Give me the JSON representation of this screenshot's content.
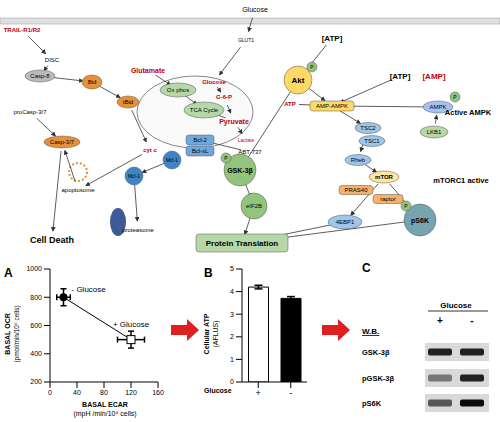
{
  "diagram": {
    "nodes": [
      {
        "label": "Glucose",
        "color": "#000000"
      },
      {
        "label": "TRAIL-R1/R2",
        "color": "#c00000"
      },
      {
        "label": "DISC",
        "color": "#000000"
      },
      {
        "label": "GLUT1",
        "color": "#000000"
      },
      {
        "label": "Casp-8",
        "color": "#bbbbbb"
      },
      {
        "label": "Bid",
        "color": "#e69138"
      },
      {
        "label": "tBid",
        "color": "#e69138"
      },
      {
        "label": "proCasp-3/7",
        "color": "#000000"
      },
      {
        "label": "Casp-3/7",
        "color": "#e69138"
      },
      {
        "label": "apoptosome",
        "color": "#000000"
      },
      {
        "label": "cyt c",
        "color": "#c00000"
      },
      {
        "label": "Cell Death",
        "color": "#000000"
      },
      {
        "label": "Glutamate",
        "color": "#c00000"
      },
      {
        "label": "Ox phos",
        "color": "#b6d7a8"
      },
      {
        "label": "TCA Cycle",
        "color": "#b6d7a8"
      },
      {
        "label": "Glucose",
        "color": "#c00000"
      },
      {
        "label": "G-6-P",
        "color": "#c00000"
      },
      {
        "label": "Pyruvate",
        "color": "#c00000"
      },
      {
        "label": "Lactate",
        "color": "#c00000"
      },
      {
        "label": "Bcl-2",
        "color": "#6fa8dc"
      },
      {
        "label": "Bcl-xL",
        "color": "#6fa8dc"
      },
      {
        "label": "ABT-737",
        "color": "#000000"
      },
      {
        "label": "Mcl-1",
        "color": "#3d85c6"
      },
      {
        "label": "Mcl-1",
        "color": "#3d85c6"
      },
      {
        "label": "proteasome",
        "color": "#000000"
      },
      {
        "label": "Akt",
        "color": "#ffd966"
      },
      {
        "label": "ATP",
        "color": "#c00000"
      },
      {
        "label": "AMP-AMPK",
        "color": "#ffd966"
      },
      {
        "label": "TSC2",
        "color": "#9fc5e8"
      },
      {
        "label": "TSC1",
        "color": "#9fc5e8"
      },
      {
        "label": "Rheb",
        "color": "#9fc5e8"
      },
      {
        "label": "mTOR",
        "color": "#ffe599"
      },
      {
        "label": "PRAS40",
        "color": "#f6b26b"
      },
      {
        "label": "raptor",
        "color": "#f6b26b"
      },
      {
        "label": "GSK-3β",
        "color": "#93c47d"
      },
      {
        "label": "eIF2B",
        "color": "#93c47d"
      },
      {
        "label": "4EBP1",
        "color": "#9fc5e8"
      },
      {
        "label": "pS6K",
        "color": "#76a5af"
      },
      {
        "label": "Protein Translation",
        "color": "#b6d7a8"
      },
      {
        "label": "[ATP]",
        "color": "#000000"
      },
      {
        "label": "[ATP]",
        "color": "#000000"
      },
      {
        "label": "[AMP]",
        "color": "#c00000"
      },
      {
        "label": "AMPK",
        "color": "#a4c2f4"
      },
      {
        "label": "LKB1",
        "color": "#b6d7a8"
      },
      {
        "label": "Active AMPK",
        "color": "#000000"
      },
      {
        "label": "mTORC1 active",
        "color": "#000000"
      },
      {
        "label": "P",
        "color": "#93c47d"
      },
      {
        "label": "P",
        "color": "#93c47d"
      },
      {
        "label": "P",
        "color": "#93c47d"
      },
      {
        "label": "P",
        "color": "#93c47d"
      }
    ]
  },
  "chart_data": [
    {
      "panel": "A",
      "type": "scatter",
      "x_label": [
        "BASAL ECAR",
        "(mpH /min/10⁶ cells)"
      ],
      "y_label": [
        "BASAL OCR",
        "(pmol/min/10⁶ cells)"
      ],
      "xlim": [
        0,
        160
      ],
      "xticks": [
        0,
        40,
        80,
        120,
        160
      ],
      "ylim": [
        200,
        1000
      ],
      "yticks": [
        200,
        400,
        600,
        800,
        1000
      ],
      "line_style": "solid",
      "color": "#000000",
      "points": [
        {
          "name": "- Glucose",
          "x": 20,
          "y": 800,
          "x_error": 10,
          "y_error": 60,
          "marker": "circle"
        },
        {
          "name": "+ Glucose",
          "x": 120,
          "y": 500,
          "x_error": 20,
          "y_error": 60,
          "marker": "square"
        }
      ]
    },
    {
      "panel": "B",
      "type": "bar",
      "categories": [
        "+",
        "-"
      ],
      "values": [
        4.2,
        3.7
      ],
      "errors": [
        0.08,
        0.08
      ],
      "colors": [
        "#ffffff",
        "#000000"
      ],
      "ylim": [
        0,
        5
      ],
      "yticks": [
        0,
        1,
        2,
        3,
        4,
        5
      ],
      "y_label": [
        "Cellular ATP",
        "(AFLUS)"
      ],
      "x_label": "Glucose"
    }
  ],
  "blot": {
    "panel": "C",
    "header": "Glucose",
    "lanes": [
      "+",
      "-"
    ],
    "method": "W.B.",
    "rows": [
      {
        "label": "GSK-3β",
        "intensity": [
          0.85,
          0.85
        ]
      },
      {
        "label": "pGSK-3β",
        "intensity": [
          0.45,
          0.85
        ]
      },
      {
        "label": "pS6K",
        "intensity": [
          0.6,
          0.95
        ]
      }
    ]
  }
}
